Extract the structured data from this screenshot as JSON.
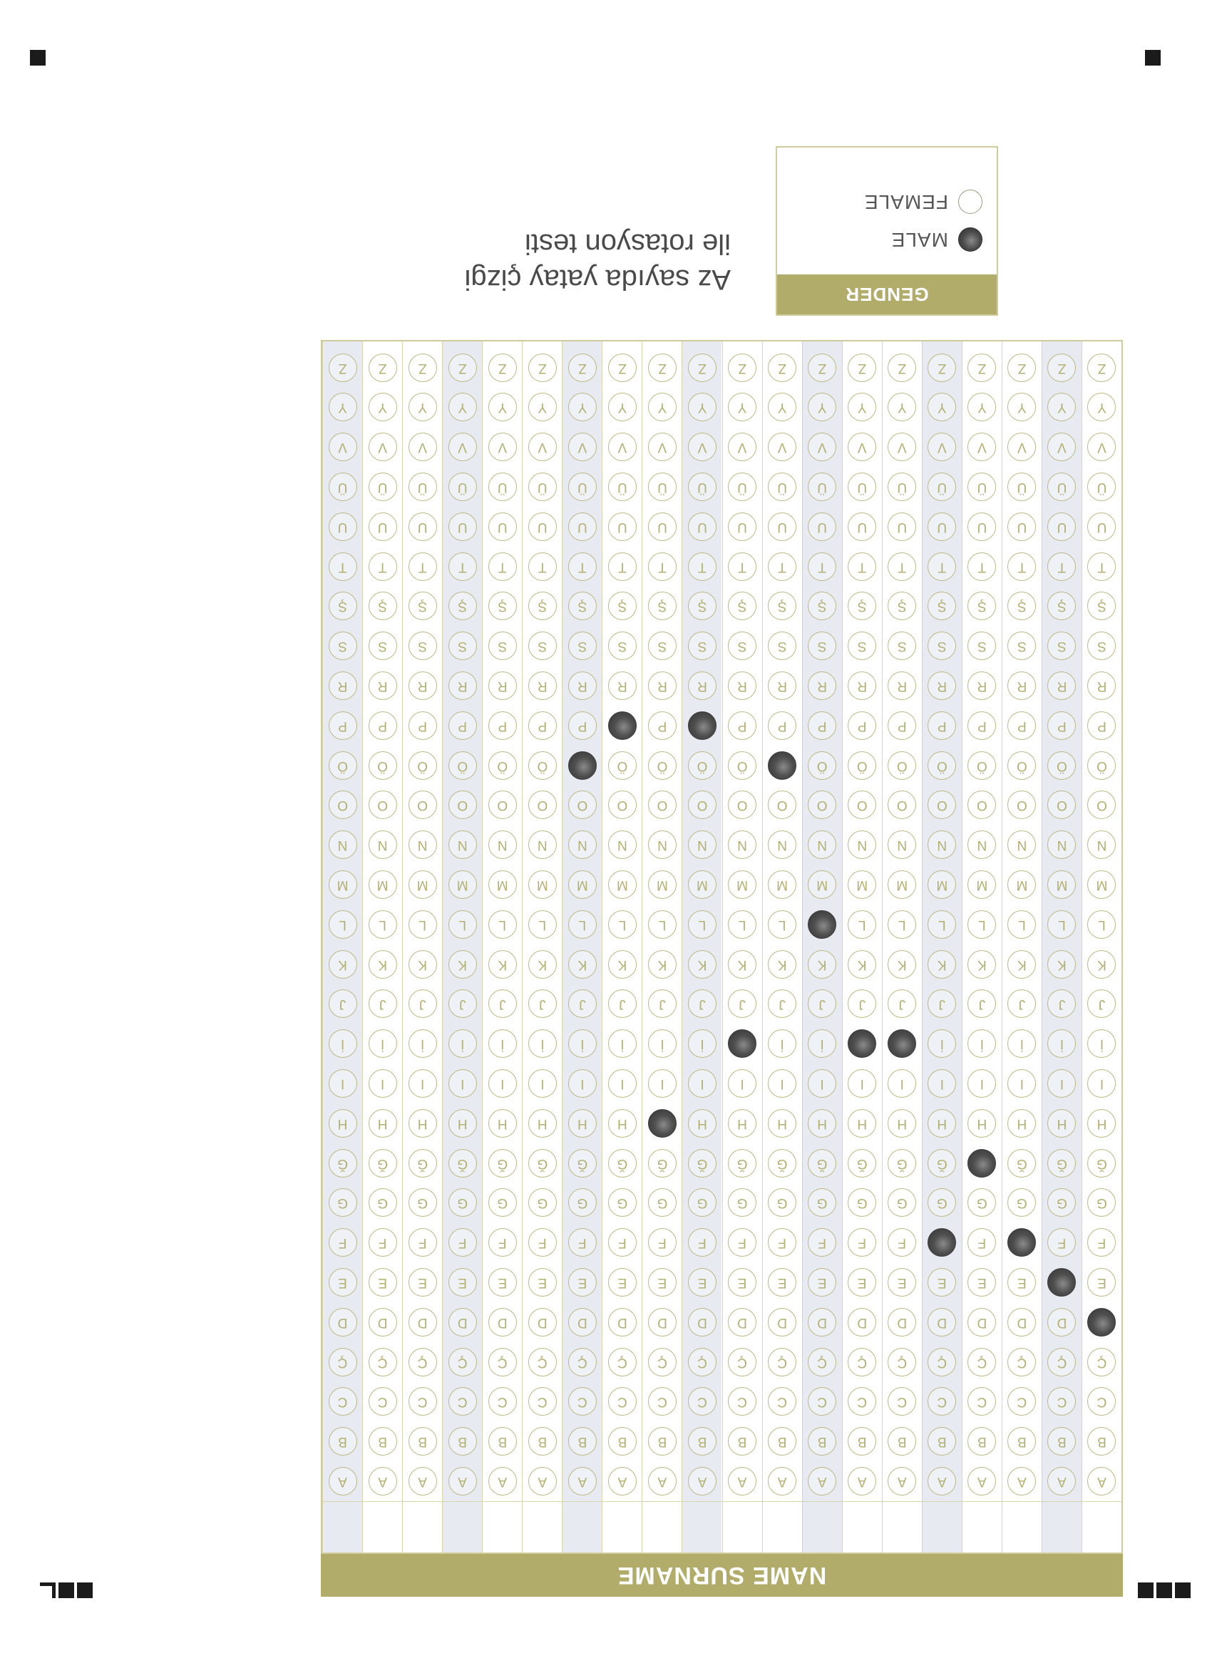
{
  "form": {
    "name_surname_label": "NAME SURNAME",
    "letters": [
      "A",
      "B",
      "C",
      "Ç",
      "D",
      "E",
      "F",
      "G",
      "Ğ",
      "H",
      "I",
      "İ",
      "J",
      "K",
      "L",
      "M",
      "N",
      "O",
      "Ö",
      "P",
      "R",
      "S",
      "Ş",
      "T",
      "U",
      "Ü",
      "V",
      "Y",
      "Z"
    ],
    "column_count": 20,
    "selected_letters": [
      "D",
      "E",
      "F",
      "Ğ",
      "F",
      "İ",
      "İ",
      "L",
      "Ö",
      "İ",
      "P",
      "H",
      "P",
      "Ö"
    ],
    "gender": {
      "title": "GENDER",
      "options": [
        {
          "label": "MALE",
          "selected": true
        },
        {
          "label": "FEMALE",
          "selected": false
        }
      ]
    },
    "title_lines": [
      "Az sayıda yatay çizgi",
      "ile rotasyon testi"
    ]
  },
  "colors": {
    "header_band": "#b1ac6a",
    "bubble_outline": "#bdb884",
    "bubble_letter": "#b4af72",
    "shaded_column": "#e7ebf1",
    "filled_mark": "#3a3a3a"
  }
}
